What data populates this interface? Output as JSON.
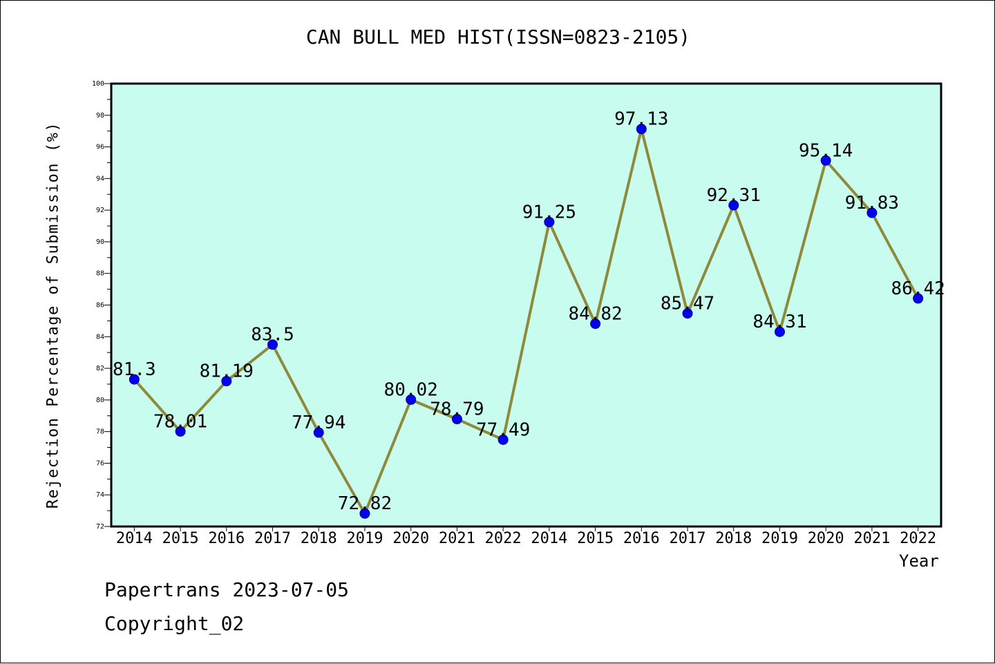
{
  "chart_data": {
    "type": "line",
    "title": "CAN BULL MED HIST(ISSN=0823-2105)",
    "xlabel": "Year",
    "ylabel": "Rejection Percentage of Submission (%)",
    "ylim": [
      72,
      100
    ],
    "yticks": [
      72,
      74,
      76,
      78,
      80,
      82,
      84,
      86,
      88,
      90,
      92,
      94,
      96,
      98,
      100
    ],
    "categories": [
      "2014",
      "2015",
      "2016",
      "2017",
      "2018",
      "2019",
      "2020",
      "2021",
      "2022",
      "2014",
      "2015",
      "2016",
      "2017",
      "2018",
      "2019",
      "2020",
      "2021",
      "2022"
    ],
    "series": [
      {
        "values": [
          81.3,
          78.01,
          81.19,
          83.5,
          77.94,
          72.82,
          80.02,
          78.79,
          77.49,
          91.25,
          84.82,
          97.13,
          85.47,
          92.31,
          84.31,
          95.14,
          91.83,
          86.42
        ],
        "labels": [
          "81.3",
          "78.01",
          "81.19",
          "83.5",
          "77.94",
          "72.82",
          "80.02",
          "78.79",
          "77.49",
          "91.25",
          "84.82",
          "97.13",
          "85.47",
          "92.31",
          "84.31",
          "95.14",
          "91.83",
          "86.42"
        ],
        "line_color": "#8f8a3b",
        "marker_color": "#0000ee"
      }
    ],
    "plot_background": "#c8fcee",
    "grid": false,
    "legend": "none"
  },
  "footer": {
    "line1": "Papertrans 2023-07-05",
    "line2": "Copyright_02"
  }
}
